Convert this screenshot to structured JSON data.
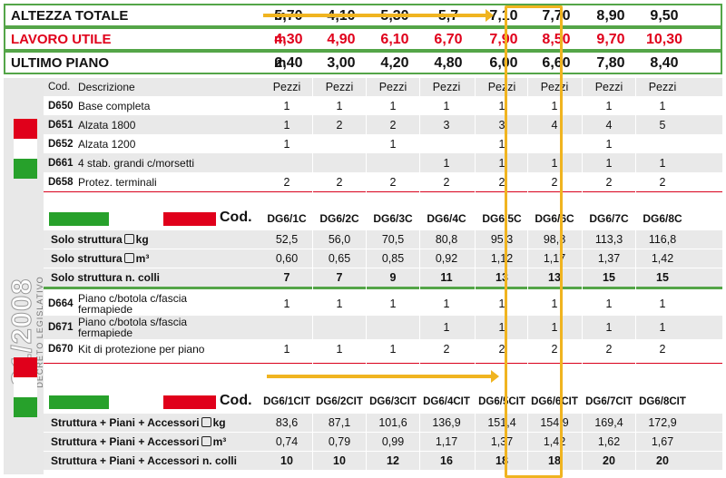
{
  "top_rows": [
    {
      "label": "ALTEZZA TOTALE",
      "unit": "m",
      "values": [
        "5,70",
        "4,10",
        "5,30",
        "5,7",
        "7,10",
        "7,70",
        "8,90",
        "9,50"
      ],
      "color": "#111111"
    },
    {
      "label": "LAVORO UTILE",
      "unit": "m",
      "values": [
        "4,30",
        "4,90",
        "6,10",
        "6,70",
        "7,90",
        "8,50",
        "9,70",
        "10,30"
      ],
      "color": "#e0001b"
    },
    {
      "label": "ULTIMO PIANO",
      "unit": "m",
      "values": [
        "2,40",
        "3,00",
        "4,20",
        "4,80",
        "6,00",
        "6,60",
        "7,80",
        "8,40"
      ],
      "color": "#111111"
    }
  ],
  "side": {
    "big": "81/2008",
    "small": "DECRETO LEGISLATIVO"
  },
  "section1": {
    "header": {
      "cod": "Cod.",
      "desc": "Descrizione",
      "cols": [
        "Pezzi",
        "Pezzi",
        "Pezzi",
        "Pezzi",
        "Pezzi",
        "Pezzi",
        "Pezzi",
        "Pezzi"
      ]
    },
    "rows": [
      {
        "cod": "D650",
        "desc": "Base completa",
        "vals": [
          "1",
          "1",
          "1",
          "1",
          "1",
          "1",
          "1",
          "1"
        ]
      },
      {
        "cod": "D651",
        "desc": "Alzata 1800",
        "vals": [
          "1",
          "2",
          "2",
          "3",
          "3",
          "4",
          "4",
          "5"
        ]
      },
      {
        "cod": "D652",
        "desc": "Alzata 1200",
        "vals": [
          "1",
          "",
          "1",
          "",
          "1",
          "",
          "1",
          ""
        ]
      },
      {
        "cod": "D661",
        "desc": "4 stab. grandi c/morsetti",
        "vals": [
          "",
          "",
          "",
          "1",
          "1",
          "1",
          "1",
          "1"
        ]
      },
      {
        "cod": "D658",
        "desc": "Protez. terminali",
        "vals": [
          "2",
          "2",
          "2",
          "2",
          "2",
          "2",
          "2",
          "2"
        ]
      }
    ]
  },
  "section2": {
    "cod_label": "Cod.",
    "codes": [
      "DG6/1C",
      "DG6/2C",
      "DG6/3C",
      "DG6/4C",
      "DG6/5C",
      "DG6/6C",
      "DG6/7C",
      "DG6/8C"
    ],
    "rows": [
      {
        "label": "Solo struttura",
        "unit": "kg",
        "vals": [
          "52,5",
          "56,0",
          "70,5",
          "80,8",
          "95,3",
          "98,8",
          "113,3",
          "116,8"
        ],
        "bold": false
      },
      {
        "label": "Solo struttura",
        "unit": "m³",
        "vals": [
          "0,60",
          "0,65",
          "0,85",
          "0,92",
          "1,12",
          "1,17",
          "1,37",
          "1,42"
        ],
        "bold": false
      },
      {
        "label": "Solo struttura n. colli",
        "unit": "",
        "vals": [
          "7",
          "7",
          "9",
          "11",
          "13",
          "13",
          "15",
          "15"
        ],
        "bold": true
      }
    ]
  },
  "section3": {
    "rows": [
      {
        "cod": "D664",
        "desc": "Piano c/botola c/fascia fermapiede",
        "vals": [
          "1",
          "1",
          "1",
          "1",
          "1",
          "1",
          "1",
          "1"
        ]
      },
      {
        "cod": "D671",
        "desc": "Piano c/botola s/fascia fermapiede",
        "vals": [
          "",
          "",
          "",
          "1",
          "1",
          "1",
          "1",
          "1"
        ]
      },
      {
        "cod": "D670",
        "desc": "Kit di protezione per piano",
        "vals": [
          "1",
          "1",
          "1",
          "2",
          "2",
          "2",
          "2",
          "2"
        ]
      }
    ]
  },
  "section4": {
    "cod_label": "Cod.",
    "codes": [
      "DG6/1CIT",
      "DG6/2CIT",
      "DG6/3CIT",
      "DG6/4CIT",
      "DG6/5CIT",
      "DG6/6CIT",
      "DG6/7CIT",
      "DG6/8CIT"
    ],
    "rows": [
      {
        "label": "Struttura + Piani + Accessori",
        "unit": "kg",
        "vals": [
          "83,6",
          "87,1",
          "101,6",
          "136,9",
          "151,4",
          "154,9",
          "169,4",
          "172,9"
        ],
        "bold": false
      },
      {
        "label": "Struttura + Piani + Accessori",
        "unit": "m³",
        "vals": [
          "0,74",
          "0,79",
          "0,99",
          "1,17",
          "1,37",
          "1,42",
          "1,62",
          "1,67"
        ],
        "bold": false
      },
      {
        "label": "Struttura + Piani + Accessori n. colli",
        "unit": "",
        "vals": [
          "10",
          "10",
          "12",
          "16",
          "18",
          "18",
          "20",
          "20"
        ],
        "bold": true
      }
    ]
  },
  "colors": {
    "green": "#54a548",
    "red": "#e0001b",
    "highlight": "#f0b420",
    "stripe": "#e9e9e9"
  }
}
